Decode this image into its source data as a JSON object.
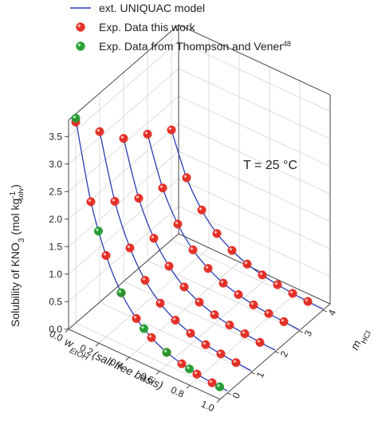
{
  "chart_data": {
    "type": "line3d",
    "annotation": "T = 25 °C",
    "x_label": [
      "w",
      "EtOH",
      " (salt free basis)"
    ],
    "y_label": [
      "m",
      "HCl"
    ],
    "z_label": [
      "Solubility of KNO",
      "3",
      " (mol kg",
      "-1",
      "solv",
      ")"
    ],
    "xlim": [
      0,
      1
    ],
    "ylim": [
      -0.3,
      4.3
    ],
    "zlim": [
      0,
      3.8
    ],
    "xticks": [
      {
        "value": 0,
        "label": "0.0"
      },
      0.2,
      0.4,
      0.6,
      0.8,
      {
        "value": 1,
        "label": "1.0"
      }
    ],
    "yticks": [
      0,
      1,
      2,
      3,
      4
    ],
    "zticks": [
      {
        "value": 0,
        "label": "0.0"
      },
      0.5,
      {
        "value": 1,
        "label": "1.0"
      },
      1.5,
      {
        "value": 2,
        "label": "2.0"
      },
      2.5,
      {
        "value": 3,
        "label": "3.0"
      },
      3.5
    ],
    "grid": true,
    "series": [
      {
        "name": "ext. UNIQUAC model",
        "color": "#2a3db0",
        "marker": "line",
        "groups": [
          {
            "y": 0,
            "x": [
              0,
              0.1,
              0.2,
              0.3,
              0.4,
              0.5,
              0.6,
              0.7,
              0.8,
              0.9,
              1
            ],
            "values": [
              3.7,
              2.33,
              1.48,
              0.93,
              0.59,
              0.37,
              0.23,
              0.15,
              0.09,
              0.06,
              0.04
            ]
          },
          {
            "y": 1,
            "x": [
              0,
              0.1,
              0.2,
              0.3,
              0.4,
              0.5,
              0.6,
              0.7,
              0.8,
              0.9,
              1
            ],
            "values": [
              3.1,
              1.96,
              1.24,
              0.78,
              0.49,
              0.31,
              0.2,
              0.12,
              0.08,
              0.05,
              0.03
            ]
          },
          {
            "y": 2,
            "x": [
              0,
              0.1,
              0.2,
              0.3,
              0.4,
              0.5,
              0.6,
              0.7,
              0.8,
              0.9,
              1
            ],
            "values": [
              2.6,
              1.64,
              1.04,
              0.66,
              0.41,
              0.26,
              0.16,
              0.1,
              0.07,
              0.04,
              0.03
            ]
          },
          {
            "y": 3,
            "x": [
              0,
              0.1,
              0.2,
              0.3,
              0.4,
              0.5,
              0.6,
              0.7,
              0.8,
              0.9,
              1
            ],
            "values": [
              2.3,
              1.45,
              0.92,
              0.58,
              0.37,
              0.23,
              0.15,
              0.09,
              0.06,
              0.04,
              0.02
            ]
          },
          {
            "y": 4,
            "x": [
              0,
              0.1,
              0.2,
              0.3,
              0.4,
              0.5,
              0.6,
              0.7,
              0.8,
              0.9,
              1
            ],
            "values": [
              2.0,
              1.26,
              0.8,
              0.5,
              0.32,
              0.2,
              0.13,
              0.08,
              0.05,
              0.03,
              0.02
            ]
          }
        ]
      },
      {
        "name": "Exp. Data this work",
        "color": "#e3261c",
        "marker": "sphere",
        "groups": [
          {
            "y": 0,
            "x": [
              0,
              0.1,
              0.2,
              0.3,
              0.4,
              0.5,
              0.6,
              0.7,
              0.8,
              0.9
            ],
            "values": [
              3.65,
              2.33,
              1.48,
              0.93,
              0.59,
              0.37,
              0.23,
              0.15,
              0.09,
              0.06
            ]
          },
          {
            "y": 1,
            "x": [
              0,
              0.1,
              0.2,
              0.3,
              0.4,
              0.5,
              0.6,
              0.7,
              0.8,
              0.9
            ],
            "values": [
              3.1,
              1.96,
              1.24,
              0.78,
              0.49,
              0.31,
              0.2,
              0.12,
              0.08,
              0.05
            ]
          },
          {
            "y": 2,
            "x": [
              0,
              0.1,
              0.2,
              0.3,
              0.4,
              0.5,
              0.6,
              0.7,
              0.8,
              0.9
            ],
            "values": [
              2.6,
              1.64,
              1.04,
              0.66,
              0.41,
              0.26,
              0.16,
              0.1,
              0.07,
              0.04
            ]
          },
          {
            "y": 3,
            "x": [
              0,
              0.1,
              0.2,
              0.3,
              0.4,
              0.5,
              0.6,
              0.7,
              0.8,
              0.9
            ],
            "values": [
              2.3,
              1.45,
              0.92,
              0.58,
              0.37,
              0.23,
              0.15,
              0.09,
              0.06,
              0.04
            ]
          },
          {
            "y": 4,
            "x": [
              0,
              0.1,
              0.2,
              0.3,
              0.4,
              0.5,
              0.6,
              0.7,
              0.8,
              0.9
            ],
            "values": [
              2.0,
              1.26,
              0.8,
              0.5,
              0.32,
              0.2,
              0.13,
              0.08,
              0.05,
              0.03
            ]
          }
        ]
      },
      {
        "name": "Exp. Data from Thompson and Vener",
        "name_sup": "48",
        "color": "#1d9a2b",
        "marker": "sphere",
        "groups": [
          {
            "y": 0,
            "x": [
              0,
              0.15,
              0.3,
              0.45,
              0.6,
              0.75,
              0.95
            ],
            "values": [
              3.72,
              1.86,
              0.93,
              0.47,
              0.23,
              0.12,
              0.05
            ]
          }
        ]
      }
    ]
  }
}
